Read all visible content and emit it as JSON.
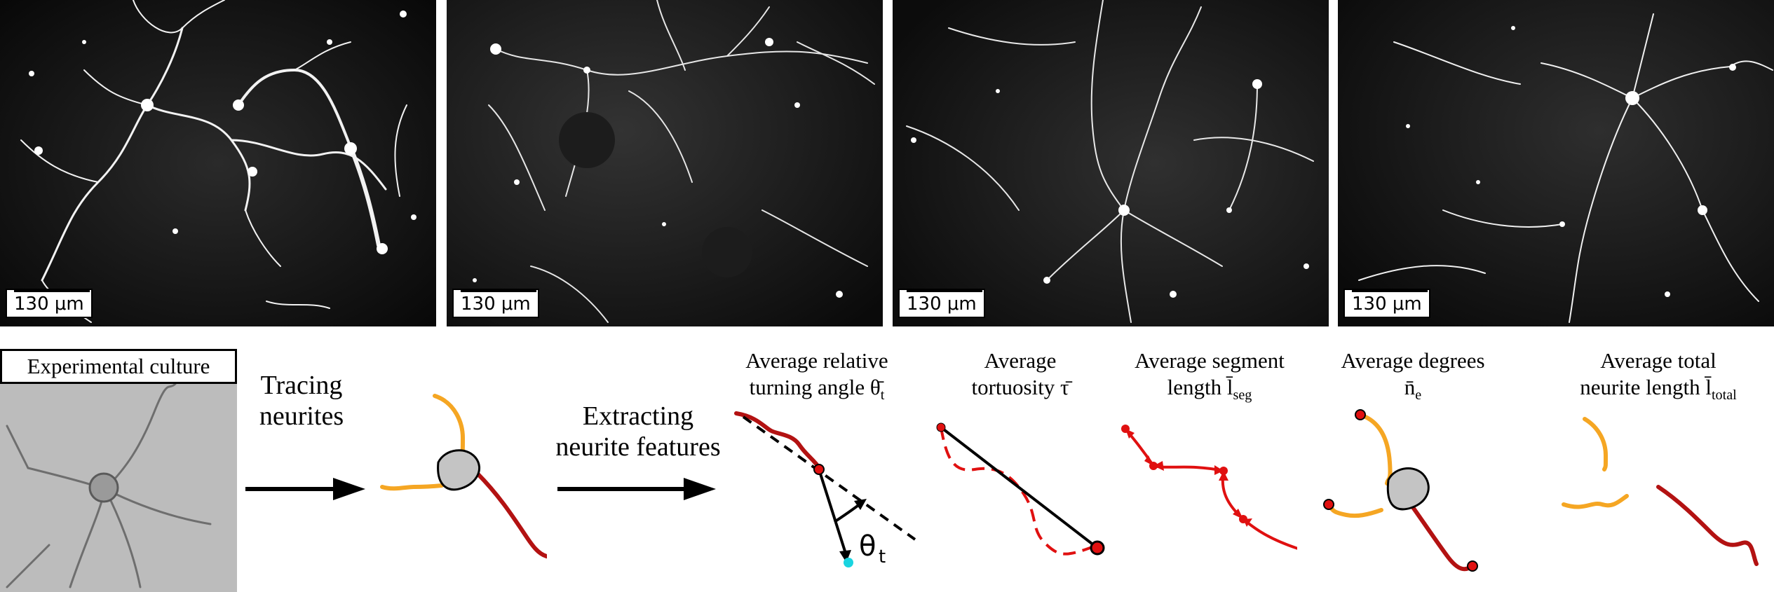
{
  "micrographs": {
    "scale_label": "130 μm"
  },
  "culture": {
    "box_label": "Experimental culture"
  },
  "steps": {
    "tracing_line1": "Tracing",
    "tracing_line2": "neurites",
    "extracting_line1": "Extracting",
    "extracting_line2": "neurite features"
  },
  "features": {
    "turning_line1": "Average relative",
    "turning_line2": "turning angle θ̄",
    "turning_sub": "t",
    "tortuosity_line1": "Average",
    "tortuosity_line2": "tortuosity τ̄",
    "segment_line1": "Average segment",
    "segment_line2": "length l̄",
    "segment_sub": "seg",
    "degree_line1": "Average degrees",
    "degree_line2": "n̄",
    "degree_sub": "e",
    "total_line1": "Average total",
    "total_line2": "neurite length l̄",
    "total_sub": "total",
    "theta_label": "θ",
    "theta_sub": "t"
  },
  "colors": {
    "neurite_orange": "#f5a623",
    "neurite_red": "#b31212",
    "soma_gray": "#c4c4c4",
    "node_red": "#e01010",
    "endpoint_cyan": "#19d4e0"
  }
}
